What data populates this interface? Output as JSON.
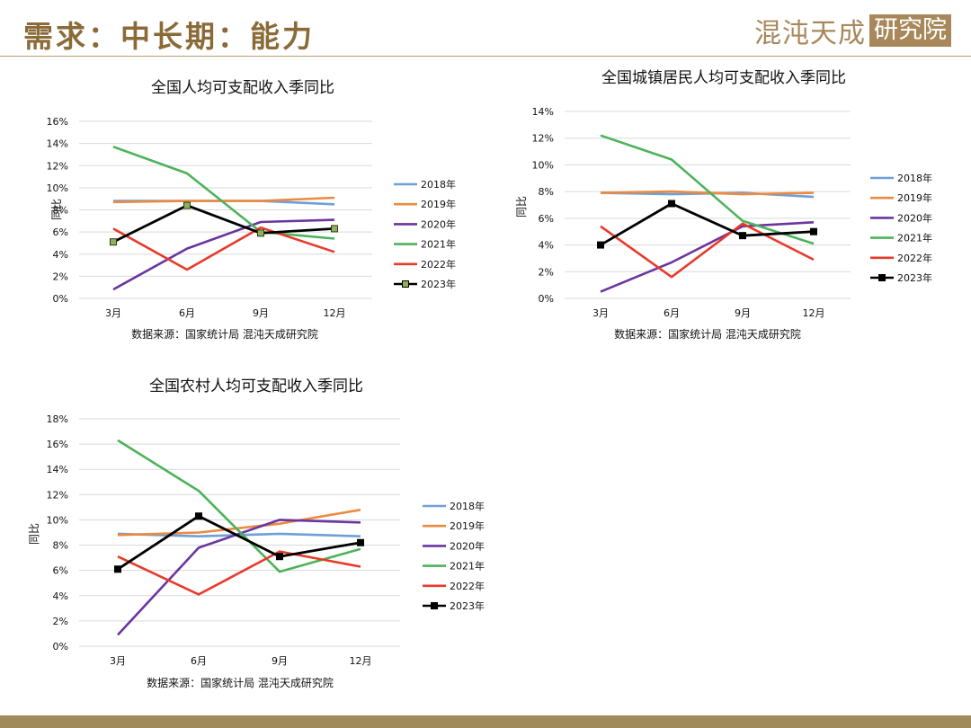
{
  "page": {
    "title": "需求：中长期：能力",
    "logo_text": "混沌天成",
    "logo_box_text": "研究院"
  },
  "colors": {
    "2018年": "#6f9fd8",
    "2019年": "#ed8a3f",
    "2020年": "#6a35a0",
    "2021年": "#4bb35a",
    "2022年": "#e83a2a",
    "2023年": "#000000",
    "marker_fill_chart1": "#8fb15a",
    "grid": "#d9d9d9"
  },
  "chart_data": [
    {
      "type": "line",
      "title": "全国人均可支配收入季同比",
      "ylabel": "同比",
      "source": "数据来源：国家统计局 混沌天成研究院",
      "categories": [
        "3月",
        "6月",
        "9月",
        "12月"
      ],
      "y_ticks": [
        "0%",
        "2%",
        "4%",
        "6%",
        "8%",
        "10%",
        "12%",
        "14%",
        "16%"
      ],
      "ylim": [
        0,
        16
      ],
      "grid": true,
      "legend_position": "right",
      "series": [
        {
          "name": "2018年",
          "values": [
            8.8,
            8.8,
            8.8,
            8.5
          ]
        },
        {
          "name": "2019年",
          "values": [
            8.7,
            8.8,
            8.8,
            9.1
          ]
        },
        {
          "name": "2020年",
          "values": [
            0.8,
            4.5,
            6.9,
            7.1
          ]
        },
        {
          "name": "2021年",
          "values": [
            13.7,
            11.3,
            6.0,
            5.4
          ]
        },
        {
          "name": "2022年",
          "values": [
            6.3,
            2.6,
            6.4,
            4.2
          ]
        },
        {
          "name": "2023年",
          "values": [
            5.1,
            8.4,
            5.9,
            6.3
          ]
        }
      ]
    },
    {
      "type": "line",
      "title": "全国城镇居民人均可支配收入季同比",
      "ylabel": "同比",
      "source": "数据来源：国家统计局 混沌天成研究院",
      "categories": [
        "3月",
        "6月",
        "9月",
        "12月"
      ],
      "y_ticks": [
        "0%",
        "2%",
        "4%",
        "6%",
        "8%",
        "10%",
        "12%",
        "14%"
      ],
      "ylim": [
        0,
        14
      ],
      "grid": true,
      "legend_position": "right",
      "series": [
        {
          "name": "2018年",
          "values": [
            7.9,
            7.8,
            7.9,
            7.6
          ]
        },
        {
          "name": "2019年",
          "values": [
            7.9,
            8.0,
            7.8,
            7.9
          ]
        },
        {
          "name": "2020年",
          "values": [
            0.5,
            2.7,
            5.4,
            5.7
          ]
        },
        {
          "name": "2021年",
          "values": [
            12.2,
            10.4,
            5.8,
            4.1
          ]
        },
        {
          "name": "2022年",
          "values": [
            5.4,
            1.6,
            5.6,
            2.9
          ]
        },
        {
          "name": "2023年",
          "values": [
            4.0,
            7.1,
            4.7,
            5.0
          ]
        }
      ]
    },
    {
      "type": "line",
      "title": "全国农村人均可支配收入季同比",
      "ylabel": "同比",
      "source": "数据来源：国家统计局 混沌天成研究院",
      "categories": [
        "3月",
        "6月",
        "9月",
        "12月"
      ],
      "y_ticks": [
        "0%",
        "2%",
        "4%",
        "6%",
        "8%",
        "10%",
        "12%",
        "14%",
        "16%",
        "18%"
      ],
      "ylim": [
        0,
        18
      ],
      "grid": true,
      "legend_position": "right",
      "series": [
        {
          "name": "2018年",
          "values": [
            8.9,
            8.7,
            8.9,
            8.7
          ]
        },
        {
          "name": "2019年",
          "values": [
            8.8,
            9.0,
            9.7,
            10.8
          ]
        },
        {
          "name": "2020年",
          "values": [
            0.9,
            7.8,
            10.0,
            9.8
          ]
        },
        {
          "name": "2021年",
          "values": [
            16.3,
            12.3,
            5.9,
            7.7
          ]
        },
        {
          "name": "2022年",
          "values": [
            7.1,
            4.1,
            7.5,
            6.3
          ]
        },
        {
          "name": "2023年",
          "values": [
            6.1,
            10.3,
            7.1,
            8.2
          ]
        }
      ]
    }
  ]
}
